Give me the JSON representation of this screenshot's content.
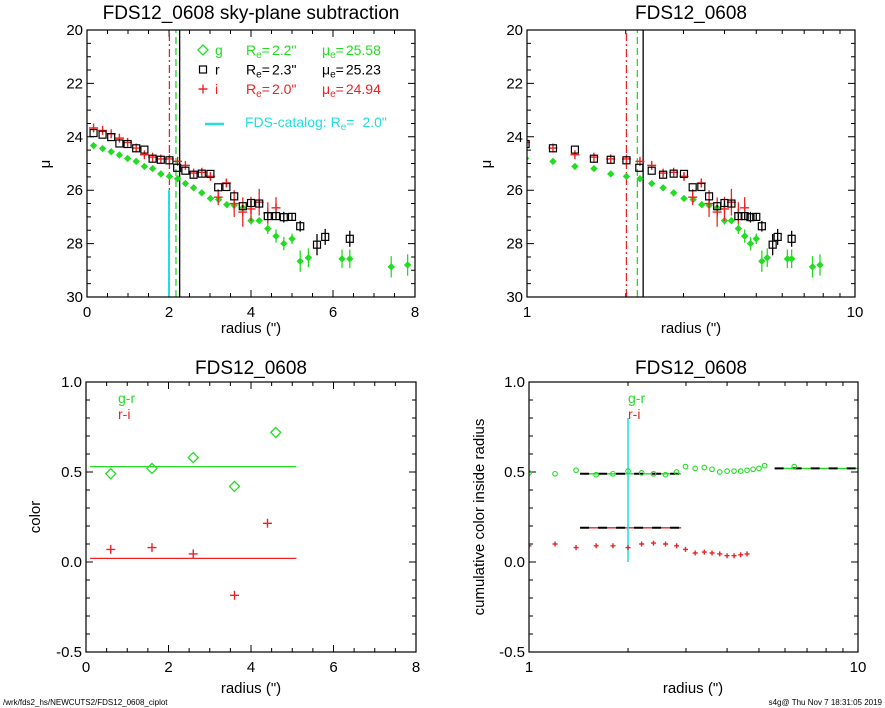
{
  "footer": {
    "left": "/wrk/fds2_hs/NEWCUTS2/FDS12_0608_ciplot",
    "right": "s4g@  Thu Nov  7 18:31:05 2019"
  },
  "colors": {
    "g": "#22dd22",
    "r": "#000000",
    "i": "#ee2222",
    "catalog": "#22dddd"
  },
  "legend_top": {
    "rows": [
      {
        "band": "g",
        "symbol": "diamond-open",
        "color": "#22dd22",
        "re_prefix": "R",
        "sub": "e",
        "eq": "=",
        "re_value": "2.2\"",
        "mu_prefix": "μ",
        "mu_eq": "=",
        "mu_value": "25.58"
      },
      {
        "band": "r",
        "symbol": "square-open",
        "color": "#000000",
        "re_prefix": "R",
        "sub": "e",
        "eq": "=",
        "re_value": "2.3\"",
        "mu_prefix": "μ",
        "mu_eq": "=",
        "mu_value": "25.23"
      },
      {
        "band": "i",
        "symbol": "plus",
        "color": "#ee2222",
        "re_prefix": "R",
        "sub": "e",
        "eq": "=",
        "re_value": "2.0\"",
        "mu_prefix": "μ",
        "mu_eq": "=",
        "mu_value": "24.94"
      }
    ],
    "catalog": {
      "label": "FDS-catalog: R",
      "sub": "e",
      "eq": "=",
      "value": "2.0\"",
      "color": "#22dddd"
    }
  },
  "chart_data": [
    {
      "type": "scatter",
      "title": "FDS12_0608 sky-plane subtraction",
      "xlabel": "radius (\")",
      "ylabel": "μ",
      "xscale": "linear",
      "xlim": [
        0,
        8
      ],
      "ylim": [
        30,
        20
      ],
      "xticks": [
        "0",
        "2",
        "4",
        "6",
        "8"
      ],
      "xtick_values": [
        0,
        2,
        4,
        6,
        8
      ],
      "xminor": 0.5,
      "yticks": [
        "20",
        "22",
        "24",
        "26",
        "28",
        "30"
      ],
      "ytick_values": [
        20,
        22,
        24,
        26,
        28,
        30
      ],
      "yminor": 0.5,
      "series_ref": "profiles",
      "lines": [
        {
          "kind": "vline",
          "x": 2.01,
          "y": [
            30,
            20
          ],
          "color": "#ee2222",
          "dash": "8,3,2,3"
        },
        {
          "kind": "vline",
          "x": 2.17,
          "y": [
            30,
            20
          ],
          "color": "#22dd22",
          "dash": "7,4"
        },
        {
          "kind": "vline",
          "x": 2.26,
          "y": [
            30,
            20
          ],
          "color": "#000000",
          "dash": ""
        },
        {
          "kind": "vline",
          "x": 2.0,
          "y": [
            30,
            26
          ],
          "color": "#22dddd",
          "dash": "",
          "width": 2
        }
      ]
    },
    {
      "type": "scatter",
      "title": "FDS12_0608",
      "xlabel": "radius (\")",
      "ylabel": "μ",
      "xscale": "log",
      "xlim": [
        1,
        10
      ],
      "ylim": [
        30,
        20
      ],
      "xticks": [
        "1",
        "10"
      ],
      "xtick_values": [
        1,
        10
      ],
      "yticks": [
        "20",
        "22",
        "24",
        "26",
        "28",
        "30"
      ],
      "ytick_values": [
        20,
        22,
        24,
        26,
        28,
        30
      ],
      "yminor": 0.5,
      "series_ref": "profiles",
      "lines": [
        {
          "kind": "vline",
          "x": 2.01,
          "y": [
            30,
            20
          ],
          "color": "#ee2222",
          "dash": "8,3,2,3"
        },
        {
          "kind": "vline",
          "x": 2.17,
          "y": [
            30,
            20
          ],
          "color": "#22dd22",
          "dash": "7,4"
        },
        {
          "kind": "vline",
          "x": 2.26,
          "y": [
            30,
            20
          ],
          "color": "#000000",
          "dash": ""
        }
      ]
    },
    {
      "type": "scatter",
      "title": "FDS12_0608",
      "xlabel": "radius (\")",
      "ylabel": "color",
      "xscale": "linear",
      "xlim": [
        0,
        8
      ],
      "ylim": [
        -0.5,
        1.0
      ],
      "xticks": [
        "0",
        "2",
        "4",
        "6",
        "8"
      ],
      "xtick_values": [
        0,
        2,
        4,
        6,
        8
      ],
      "xminor": 0.5,
      "yticks": [
        "-0.5",
        "0.0",
        "0.5",
        "1.0"
      ],
      "ytick_values": [
        -0.5,
        0,
        0.5,
        1.0
      ],
      "yminor": 0.1,
      "legend": [
        {
          "label": "g-r",
          "color": "#22dd22"
        },
        {
          "label": "r-i",
          "color": "#ee2222"
        }
      ],
      "series": [
        {
          "name": "g-r",
          "symbol": "diamond-open",
          "color": "#22dd22",
          "x": [
            0.6,
            1.6,
            2.6,
            3.6,
            4.6
          ],
          "y": [
            0.49,
            0.52,
            0.58,
            0.42,
            0.72
          ]
        },
        {
          "name": "r-i",
          "symbol": "plus",
          "color": "#ee2222",
          "x": [
            0.6,
            1.6,
            2.6,
            3.6,
            4.4
          ],
          "y": [
            0.07,
            0.08,
            0.045,
            -0.185,
            0.215
          ]
        }
      ],
      "lines": [
        {
          "kind": "hline",
          "y": 0.53,
          "x": [
            0.1,
            5.1
          ],
          "color": "#22dd22",
          "dash": ""
        },
        {
          "kind": "hline",
          "y": 0.02,
          "x": [
            0.1,
            5.1
          ],
          "color": "#ee2222",
          "dash": ""
        }
      ]
    },
    {
      "type": "scatter",
      "title": "FDS12_0608",
      "xlabel": "radius (\")",
      "ylabel": "cumulative color inside radius",
      "xscale": "log",
      "xlim": [
        1,
        10
      ],
      "ylim": [
        -0.5,
        1.0
      ],
      "xticks": [
        "1",
        "10"
      ],
      "xtick_values": [
        1,
        10
      ],
      "yticks": [
        "-0.5",
        "0.0",
        "0.5",
        "1.0"
      ],
      "ytick_values": [
        -0.5,
        0,
        0.5,
        1.0
      ],
      "yminor": 0.1,
      "legend": [
        {
          "label": "g-r",
          "color": "#22dd22"
        },
        {
          "label": "r-i",
          "color": "#ee2222"
        }
      ],
      "series": [
        {
          "name": "g-r",
          "symbol": "circle-open",
          "color": "#22dd22",
          "x": [
            1.0,
            1.2,
            1.39,
            1.6,
            1.8,
            2.0,
            2.2,
            2.39,
            2.6,
            2.81,
            2.99,
            3.2,
            3.41,
            3.6,
            3.8,
            4.0,
            4.2,
            4.4,
            4.6,
            4.8,
            5.0,
            5.2,
            6.4
          ],
          "y": [
            0.495,
            0.49,
            0.51,
            0.485,
            0.49,
            0.505,
            0.495,
            0.49,
            0.485,
            0.5,
            0.53,
            0.52,
            0.525,
            0.515,
            0.5,
            0.505,
            0.505,
            0.505,
            0.51,
            0.515,
            0.52,
            0.535,
            0.53
          ]
        },
        {
          "name": "r-i",
          "symbol": "plus-small",
          "color": "#ee2222",
          "x": [
            1.0,
            1.2,
            1.39,
            1.6,
            1.8,
            2.0,
            2.2,
            2.39,
            2.6,
            2.81,
            2.99,
            3.2,
            3.41,
            3.6,
            3.8,
            4.0,
            4.2,
            4.4,
            4.6
          ],
          "y": [
            0.09,
            0.1,
            0.08,
            0.09,
            0.09,
            0.08,
            0.1,
            0.105,
            0.1,
            0.09,
            0.07,
            0.05,
            0.055,
            0.05,
            0.045,
            0.035,
            0.035,
            0.04,
            0.045
          ]
        }
      ],
      "lines": [
        {
          "kind": "hline",
          "y": 0.49,
          "x": [
            1.43,
            2.9
          ],
          "color": "#22dd22",
          "dash": "",
          "overlay": "#000000"
        },
        {
          "kind": "hline",
          "y": 0.19,
          "x": [
            1.43,
            2.9
          ],
          "color": "#ee2222",
          "dash": "",
          "overlay": "#000000"
        },
        {
          "kind": "hline",
          "y": 0.52,
          "x": [
            5.58,
            10
          ],
          "color": "#22dd22",
          "dash": "",
          "overlay": "#000000"
        },
        {
          "kind": "vline",
          "x": 2.0,
          "y": [
            0,
            0.8
          ],
          "color": "#22dddd",
          "dash": "",
          "width": 1.5
        }
      ]
    }
  ],
  "profiles": [
    {
      "name": "g",
      "symbol": "diamond-filled",
      "color": "#22dd22",
      "x": [
        0.16,
        0.38,
        0.59,
        0.79,
        0.99,
        1.2,
        1.4,
        1.6,
        1.8,
        2.01,
        2.21,
        2.4,
        2.6,
        2.8,
        3.01,
        3.21,
        3.41,
        3.59,
        3.8,
        4.0,
        4.2,
        4.41,
        4.61,
        4.8,
        5.0,
        5.2,
        5.4,
        6.22,
        6.41,
        7.42,
        7.82
      ],
      "y": [
        24.33,
        24.44,
        24.56,
        24.68,
        24.81,
        24.92,
        25.11,
        25.19,
        25.39,
        25.48,
        25.57,
        25.75,
        25.91,
        26.1,
        26.31,
        26.35,
        26.54,
        26.57,
        26.66,
        27.14,
        27.14,
        27.44,
        27.72,
        28.0,
        27.82,
        28.66,
        28.53,
        28.57,
        28.57,
        28.87,
        28.8
      ],
      "err": [
        0,
        0,
        0,
        0,
        0,
        0,
        0,
        0,
        0,
        0,
        0,
        0,
        0,
        0,
        0,
        0,
        0,
        0,
        0.05,
        0.15,
        0.1,
        0.2,
        0.25,
        0.25,
        0.2,
        0.4,
        0.35,
        0.35,
        0.35,
        0.4,
        0.4
      ]
    },
    {
      "name": "i",
      "symbol": "plus",
      "color": "#ee2222",
      "x": [
        0.16,
        0.38,
        0.59,
        0.79,
        0.99,
        1.2,
        1.4,
        1.6,
        1.8,
        2.01,
        2.21,
        2.4,
        2.6,
        2.8,
        3.01,
        3.2,
        3.4,
        3.59,
        3.8,
        4.0,
        4.2,
        4.41,
        4.61
      ],
      "y": [
        23.67,
        23.76,
        23.89,
        24.05,
        24.21,
        24.42,
        24.67,
        24.76,
        24.83,
        24.83,
        24.92,
        25.07,
        25.36,
        25.33,
        25.48,
        26.26,
        25.73,
        26.5,
        26.82,
        26.7,
        26.45,
        26.85,
        26.66
      ],
      "err": [
        0,
        0,
        0,
        0,
        0,
        0,
        0,
        0,
        0,
        0,
        0,
        0,
        0.1,
        0.1,
        0.15,
        0.3,
        0.15,
        0.5,
        0.55,
        0.45,
        0.5,
        0.4,
        0.4
      ]
    },
    {
      "name": "r",
      "symbol": "square-open",
      "color": "#000000",
      "x": [
        0.16,
        0.38,
        0.59,
        0.79,
        0.99,
        1.2,
        1.4,
        1.6,
        1.8,
        2.01,
        2.2,
        2.4,
        2.6,
        2.8,
        3.01,
        3.2,
        3.4,
        3.59,
        3.8,
        4.0,
        4.2,
        4.41,
        4.61,
        4.8,
        5.0,
        5.2,
        5.61,
        5.81,
        6.41
      ],
      "y": [
        23.86,
        23.92,
        24.01,
        24.25,
        24.27,
        24.43,
        24.48,
        24.82,
        24.86,
        24.88,
        25.16,
        25.27,
        25.42,
        25.38,
        25.39,
        25.89,
        25.88,
        26.23,
        26.6,
        26.48,
        26.5,
        26.97,
        26.97,
        27.01,
        27.0,
        27.35,
        28.04,
        27.75,
        27.82
      ],
      "err": [
        0,
        0,
        0,
        0,
        0,
        0,
        0,
        0,
        0,
        0,
        0,
        0,
        0,
        0,
        0,
        0,
        0,
        0,
        0.05,
        0.1,
        0.1,
        0.1,
        0.15,
        0.2,
        0.15,
        0.2,
        0.4,
        0.3,
        0.3
      ]
    }
  ]
}
